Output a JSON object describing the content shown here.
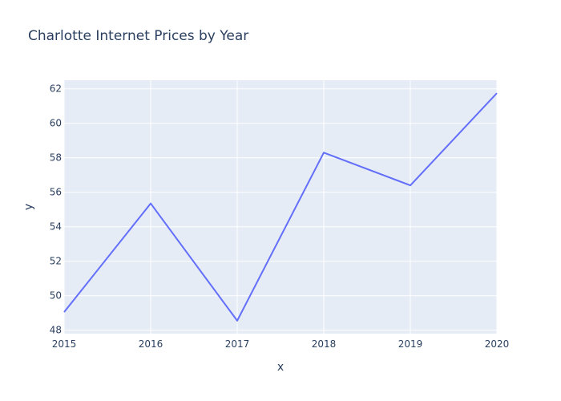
{
  "chart_data": {
    "type": "line",
    "title": "Charlotte Internet Prices by Year",
    "xlabel": "x",
    "ylabel": "y",
    "x": [
      2015,
      2016,
      2017,
      2018,
      2019,
      2020
    ],
    "series": [
      {
        "values": [
          49.05,
          55.35,
          48.55,
          58.3,
          56.4,
          61.75
        ]
      }
    ],
    "xlim": [
      2015,
      2020
    ],
    "ylim": [
      47.8,
      62.5
    ],
    "xticks": [
      2015,
      2016,
      2017,
      2018,
      2019,
      2020
    ],
    "yticks": [
      48,
      50,
      52,
      54,
      56,
      58,
      60,
      62
    ],
    "grid": true,
    "legend": "none"
  },
  "colors": {
    "plot_background": "#e5ecf6",
    "grid": "#ffffff",
    "line": "#636efa",
    "text": "#2a3f5f"
  }
}
